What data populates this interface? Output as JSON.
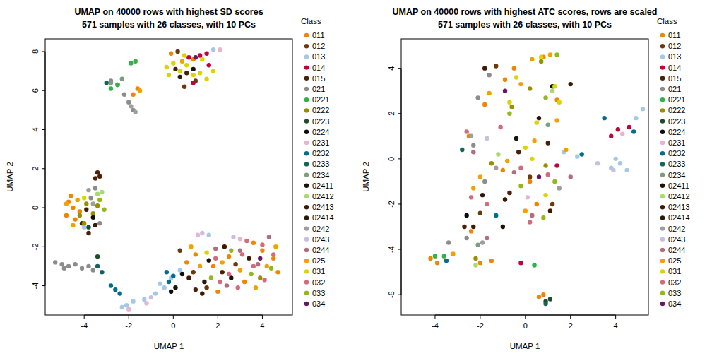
{
  "chart_data": [
    {
      "type": "scatter",
      "title": "UMAP on 40000 rows with highest SD scores",
      "subtitle": "571 samples with 26 classes, with 10 PCs",
      "x_label": "UMAP 1",
      "y_label": "UMAP 2",
      "legend_title": "Class",
      "legend": "right",
      "marker": "circle",
      "xlim": [
        -5.75,
        5.35
      ],
      "ylim": [
        -5.5,
        8.65
      ],
      "xticks": [
        -4,
        -2,
        0,
        2,
        4
      ],
      "yticks": [
        -4,
        -2,
        0,
        2,
        4,
        6,
        8
      ],
      "series": [
        {
          "name": "011",
          "color": "#F28500",
          "x": [
            0.9,
            -0.1,
            -4.7,
            -4.5,
            -4.8,
            -4.4,
            -4.6,
            -4.2,
            -1.8,
            -1.6,
            1.8,
            2.5,
            3.2,
            4.0,
            4.5,
            1.0,
            2.0,
            3.6,
            0.6,
            4.7
          ],
          "values": [
            7.6,
            7.9,
            0.3,
            0.0,
            -0.4,
            -0.6,
            0.6,
            -0.2,
            5.8,
            6.1,
            -3.0,
            -2.5,
            -3.8,
            -2.2,
            -2.6,
            -2.4,
            -4.3,
            -1.8,
            -2.8,
            -3.3
          ]
        },
        {
          "name": "012",
          "color": "#6B3A0B",
          "x": [
            0.2,
            1.0,
            0.5,
            0.9,
            1.5,
            2.8,
            0.3
          ],
          "values": [
            8.0,
            6.5,
            6.2,
            -3.3,
            -4.1,
            -2.9,
            -2.2
          ]
        },
        {
          "name": "013",
          "color": "#A6C8E8",
          "x": [
            -2.1,
            -1.8,
            -1.3,
            -0.8,
            -0.4,
            -0.1,
            0.3,
            -0.6,
            1.6,
            -2.3,
            -4.0,
            1.8
          ],
          "values": [
            -5.0,
            -4.8,
            -4.7,
            -4.4,
            -4.1,
            -3.6,
            -3.2,
            -3.9,
            -1.4,
            -5.1,
            -1.0,
            8.1
          ]
        },
        {
          "name": "014",
          "color": "#C5003E",
          "x": [
            1.2,
            1.5,
            1.6,
            0.7,
            0.9
          ],
          "values": [
            7.8,
            7.9,
            7.3,
            7.7,
            6.4
          ]
        },
        {
          "name": "015",
          "color": "#4A2008",
          "x": [
            -3.3,
            -3.4,
            -3.5,
            -4.1,
            -3.8,
            0.1,
            0.6,
            1.0,
            2.2
          ],
          "values": [
            1.6,
            1.8,
            1.5,
            -0.8,
            -1.3,
            7.1,
            6.9,
            -4.2,
            -3.3
          ]
        },
        {
          "name": "021",
          "color": "#8C8C8C",
          "x": [
            -5.3,
            -5.0,
            -4.7,
            -4.4,
            -4.1,
            -3.8,
            -3.6,
            -4.9,
            -2.8,
            -2.5,
            -2.0,
            -1.8,
            -2.2,
            -3.7,
            -3.5,
            -3.3
          ],
          "values": [
            -2.8,
            -2.9,
            -3.0,
            -2.9,
            -3.1,
            -3.0,
            -3.2,
            -3.1,
            6.5,
            6.3,
            5.4,
            5.0,
            5.8,
            0.5,
            1.0,
            -0.8
          ]
        },
        {
          "name": "0221",
          "color": "#2DB34A",
          "x": [
            -2.8,
            -2.5,
            -1.9,
            -1.7
          ],
          "values": [
            6.1,
            6.3,
            7.4,
            7.5
          ]
        },
        {
          "name": "0222",
          "color": "#9A8F00",
          "x": [
            -4.2,
            -3.9,
            -3.6,
            -4.0,
            -3.4,
            3.9
          ],
          "values": [
            -0.4,
            0.2,
            -0.3,
            -0.8,
            0.1,
            -3.6
          ]
        },
        {
          "name": "0223",
          "color": "#1E4D2B",
          "x": [
            -3.8,
            -3.4
          ],
          "values": [
            -1.0,
            -2.5
          ]
        },
        {
          "name": "0224",
          "color": "#0D0D0D",
          "x": [
            0.4,
            -0.1,
            -3.6
          ],
          "values": [
            -3.4,
            -4.3,
            -0.5
          ]
        },
        {
          "name": "0231",
          "color": "#E8B4D0",
          "x": [
            -2.0,
            -1.2,
            2.1,
            1.1,
            3.0
          ],
          "values": [
            -5.2,
            -4.9,
            8.1,
            -1.4,
            -1.6
          ]
        },
        {
          "name": "0232",
          "color": "#006F8E",
          "x": [
            -2.8,
            -2.6,
            -2.4,
            -0.3,
            0.0,
            -0.2
          ],
          "values": [
            -4.0,
            -4.2,
            -4.4,
            -3.3,
            -3.5,
            -3.8
          ]
        },
        {
          "name": "0233",
          "color": "#13645B",
          "x": [
            -3.2,
            -3.4,
            -3.0
          ],
          "values": [
            -3.3,
            -3.0,
            6.4
          ]
        },
        {
          "name": "0234",
          "color": "#7A9E7E",
          "x": [
            -2.8,
            -2.3
          ],
          "values": [
            6.4,
            6.6
          ]
        },
        {
          "name": "02411",
          "color": "#1C1205",
          "x": [
            0.9,
            0.1,
            1.6,
            2.6
          ],
          "values": [
            7.1,
            -4.1,
            -2.7,
            -3.6
          ]
        },
        {
          "name": "02412",
          "color": "#A8DC6A",
          "x": [
            -3.4,
            -3.2
          ],
          "values": [
            0.7,
            0.8
          ]
        },
        {
          "name": "02413",
          "color": "#3D1A00",
          "x": [
            -3.9,
            -3.5,
            0.7,
            2.3,
            1.3,
            3.4
          ],
          "values": [
            -0.1,
            -0.9,
            -3.6,
            -2.0,
            -4.4,
            -2.6
          ]
        },
        {
          "name": "02414",
          "color": "#2B1A0A",
          "x": [
            0.3,
            1.4
          ],
          "values": [
            6.7,
            -3.8
          ]
        },
        {
          "name": "0242",
          "color": "#9E9E9E",
          "x": [
            -3.6,
            -3.8,
            -1.9,
            -1.7
          ],
          "values": [
            0.2,
            0.9,
            5.2,
            4.9
          ]
        },
        {
          "name": "0243",
          "color": "#C9BFE0",
          "x": [
            1.3,
            2.7,
            -1.0
          ],
          "values": [
            -1.3,
            -1.5,
            -4.6
          ]
        },
        {
          "name": "0244",
          "color": "#B06E7C",
          "x": [
            3.0,
            3.8,
            4.3,
            2.4,
            1.9
          ],
          "values": [
            -2.2,
            -2.9,
            -1.5,
            -4.0,
            -2.1
          ]
        },
        {
          "name": "025",
          "color": "#F5A000",
          "x": [
            -4.8,
            -4.3,
            -4.5,
            -1.5,
            0.4,
            2.2,
            3.0,
            3.7,
            4.2,
            1.2,
            0.8,
            4.6
          ],
          "values": [
            0.2,
            0.4,
            -0.9,
            6.0,
            7.5,
            -2.8,
            -3.2,
            -4.1,
            -3.0,
            -3.0,
            -2.0,
            -2.0
          ]
        },
        {
          "name": "031",
          "color": "#DCD400",
          "x": [
            -0.3,
            0.0,
            0.3,
            0.6,
            0.9,
            1.2,
            1.5,
            1.8,
            -0.2,
            0.5,
            1.3,
            -4.0,
            1.5
          ],
          "values": [
            7.2,
            7.4,
            7.0,
            7.3,
            6.8,
            6.9,
            6.6,
            7.0,
            6.8,
            7.8,
            7.6,
            0.5,
            -2.3
          ]
        },
        {
          "name": "032",
          "color": "#D46A7E",
          "x": [
            1.9,
            2.5,
            3.1,
            3.6,
            4.1,
            4.5,
            2.9,
            3.3,
            2.1,
            4.0
          ],
          "values": [
            -2.6,
            -3.4,
            -2.4,
            -3.0,
            -3.7,
            -2.4,
            -4.1,
            -1.7,
            -3.8,
            -1.9
          ]
        },
        {
          "name": "033",
          "color": "#93B81C",
          "x": [
            -3.1,
            -3.3,
            3.5,
            2.6,
            4.4,
            1.7
          ],
          "values": [
            -0.1,
            0.4,
            -3.4,
            -2.2,
            -3.1,
            -3.6
          ]
        },
        {
          "name": "034",
          "color": "#6A1560",
          "x": [
            1.0,
            3.9
          ],
          "values": [
            7.7,
            -2.6
          ]
        }
      ]
    },
    {
      "type": "scatter",
      "title": "UMAP on 40000 rows with highest ATC scores, rows are scaled",
      "subtitle": "571 samples with 26 classes, with 10 PCs",
      "x_label": "UMAP 1",
      "y_label": "UMAP 2",
      "legend_title": "Class",
      "legend": "right",
      "marker": "circle",
      "xlim": [
        -5.5,
        5.45
      ],
      "ylim": [
        -6.9,
        5.3
      ],
      "xticks": [
        -4,
        -2,
        0,
        2,
        4
      ],
      "yticks": [
        -6,
        -4,
        -2,
        0,
        2,
        4
      ],
      "series": [
        {
          "name": "011",
          "color": "#F28500",
          "x": [
            -4.2,
            -3.9,
            -2.0,
            -1.5,
            0.6,
            0.8,
            -0.9,
            -0.5,
            0.8,
            -2.4,
            -1.0,
            0.2,
            -2.5,
            1.4,
            -1.8,
            0.5
          ],
          "values": [
            -4.4,
            -4.6,
            -4.6,
            -4.5,
            -6.1,
            -6.0,
            3.5,
            4.0,
            4.5,
            -3.2,
            -0.5,
            -1.0,
            1.0,
            2.6,
            2.4,
            -2.0
          ]
        },
        {
          "name": "012",
          "color": "#6B3A0B",
          "x": [
            0.2,
            -2.0,
            1.2,
            -1.3
          ],
          "values": [
            -0.8,
            -2.4,
            -2.0,
            4.1
          ]
        },
        {
          "name": "013",
          "color": "#A6C8E8",
          "x": [
            3.8,
            4.2,
            4.5,
            5.2,
            4.9,
            2.3,
            1.7,
            4.0
          ],
          "values": [
            -0.4,
            -0.2,
            -0.5,
            2.2,
            1.8,
            0.1,
            0.3,
            0.0
          ]
        },
        {
          "name": "014",
          "color": "#C5003E",
          "x": [
            4.1,
            4.6,
            3.8,
            -0.2,
            1.4
          ],
          "values": [
            1.3,
            1.4,
            1.0,
            -4.6,
            -0.3
          ]
        },
        {
          "name": "015",
          "color": "#4A2008",
          "x": [
            -2.7,
            -0.7,
            1.0,
            -0.3
          ],
          "values": [
            -3.0,
            -1.5,
            0.7,
            0.3
          ]
        },
        {
          "name": "021",
          "color": "#8C8C8C",
          "x": [
            -3.4,
            -2.6,
            -1.6,
            -2.1,
            -2.3,
            -1.8
          ],
          "values": [
            -3.7,
            -3.5,
            3.7,
            2.7,
            0.6,
            -1.0
          ]
        },
        {
          "name": "0221",
          "color": "#2DB34A",
          "x": [
            -4.0,
            -3.6,
            0.4
          ],
          "values": [
            -4.3,
            -4.3,
            -4.7
          ]
        },
        {
          "name": "0222",
          "color": "#9A8F00",
          "x": [
            -0.6,
            0.2,
            0.9,
            -1.5,
            -2.2,
            0.7
          ],
          "values": [
            2.3,
            3.1,
            -0.3,
            -0.2,
            -4.4,
            4.3
          ]
        },
        {
          "name": "0223",
          "color": "#1E4D2B",
          "x": [
            0.9,
            1.1
          ],
          "values": [
            -6.3,
            -6.2
          ]
        },
        {
          "name": "0224",
          "color": "#0D0D0D",
          "x": [
            -2.6,
            1.2
          ],
          "values": [
            -2.5,
            3.2
          ]
        },
        {
          "name": "0231",
          "color": "#E8B4D0",
          "x": [
            4.3,
            0.1
          ],
          "values": [
            1.1,
            -1.7
          ]
        },
        {
          "name": "0232",
          "color": "#006F8E",
          "x": [
            2.5,
            3.5,
            4.8,
            -3.5,
            -1.3
          ],
          "values": [
            0.2,
            1.8,
            1.2,
            -4.5,
            -2.5
          ]
        },
        {
          "name": "0233",
          "color": "#13645B",
          "x": [
            0.9,
            -2.8
          ],
          "values": [
            -6.4,
            0.4
          ]
        },
        {
          "name": "0234",
          "color": "#7A9E7E",
          "x": [
            -2.1,
            1.0
          ],
          "values": [
            -3.8,
            1.5
          ]
        },
        {
          "name": "02411",
          "color": "#1C1205",
          "x": [
            -0.4,
            -1.0
          ],
          "values": [
            0.9,
            -3.0
          ]
        },
        {
          "name": "02412",
          "color": "#A8DC6A",
          "x": [
            -2.2,
            1.2,
            -1.2
          ],
          "values": [
            -4.7,
            3.0,
            0.2
          ]
        },
        {
          "name": "02413",
          "color": "#3D1A00",
          "x": [
            -2.3,
            -0.9,
            1.1,
            -1.8,
            2.0
          ],
          "values": [
            -3.0,
            -1.8,
            -2.3,
            4.0,
            3.3
          ]
        },
        {
          "name": "02414",
          "color": "#2B1A0A",
          "x": [
            -1.9,
            0.6
          ],
          "values": [
            -1.6,
            1.8
          ]
        },
        {
          "name": "0242",
          "color": "#9E9E9E",
          "x": [
            -2.4,
            -1.9,
            -1.3,
            1.5
          ],
          "values": [
            1.0,
            -3.7,
            -0.4,
            -1.3
          ]
        },
        {
          "name": "0243",
          "color": "#C9BFE0",
          "x": [
            3.9,
            3.2,
            -1.7
          ],
          "values": [
            -0.5,
            -0.2,
            0.9
          ]
        },
        {
          "name": "0244",
          "color": "#B06E7C",
          "x": [
            -2.3,
            -1.7,
            0.3,
            -0.5,
            2.0
          ],
          "values": [
            0.3,
            -3.5,
            -2.5,
            -0.6,
            -0.8
          ]
        },
        {
          "name": "025",
          "color": "#F5A000",
          "x": [
            -0.2,
            0.3,
            1.1,
            -1.6,
            -2.3,
            -0.8,
            0.4,
            1.4,
            -3.2,
            -2.0,
            0.0,
            1.8
          ],
          "values": [
            3.3,
            4.4,
            4.6,
            2.9,
            -1.3,
            -0.1,
            0.8,
            1.7,
            -4.2,
            -0.8,
            -2.3,
            0.4
          ]
        },
        {
          "name": "031",
          "color": "#DCD400",
          "x": [
            0.0,
            0.5,
            -0.4,
            0.7,
            1.3,
            -0.7,
            0.9,
            0.3,
            1.5
          ],
          "values": [
            0.5,
            1.6,
            3.6,
            4.5,
            3.2,
            2.5,
            -1.6,
            0.0,
            2.5
          ]
        },
        {
          "name": "032",
          "color": "#D46A7E",
          "x": [
            -2.4,
            -1.7,
            -2.6,
            0.2,
            1.0,
            -1.1,
            -0.2
          ],
          "values": [
            -1.7,
            -2.0,
            1.2,
            -2.8,
            -0.7,
            1.4,
            -0.4
          ]
        },
        {
          "name": "033",
          "color": "#93B81C",
          "x": [
            0.8,
            -0.7,
            0.9,
            1.3,
            -0.2,
            1.4
          ],
          "values": [
            -2.6,
            2.0,
            2.7,
            -1.0,
            -1.2,
            4.6
          ]
        },
        {
          "name": "034",
          "color": "#6A1560",
          "x": [
            0.6,
            -0.9
          ],
          "values": [
            -0.8,
            3.0
          ]
        }
      ]
    }
  ]
}
